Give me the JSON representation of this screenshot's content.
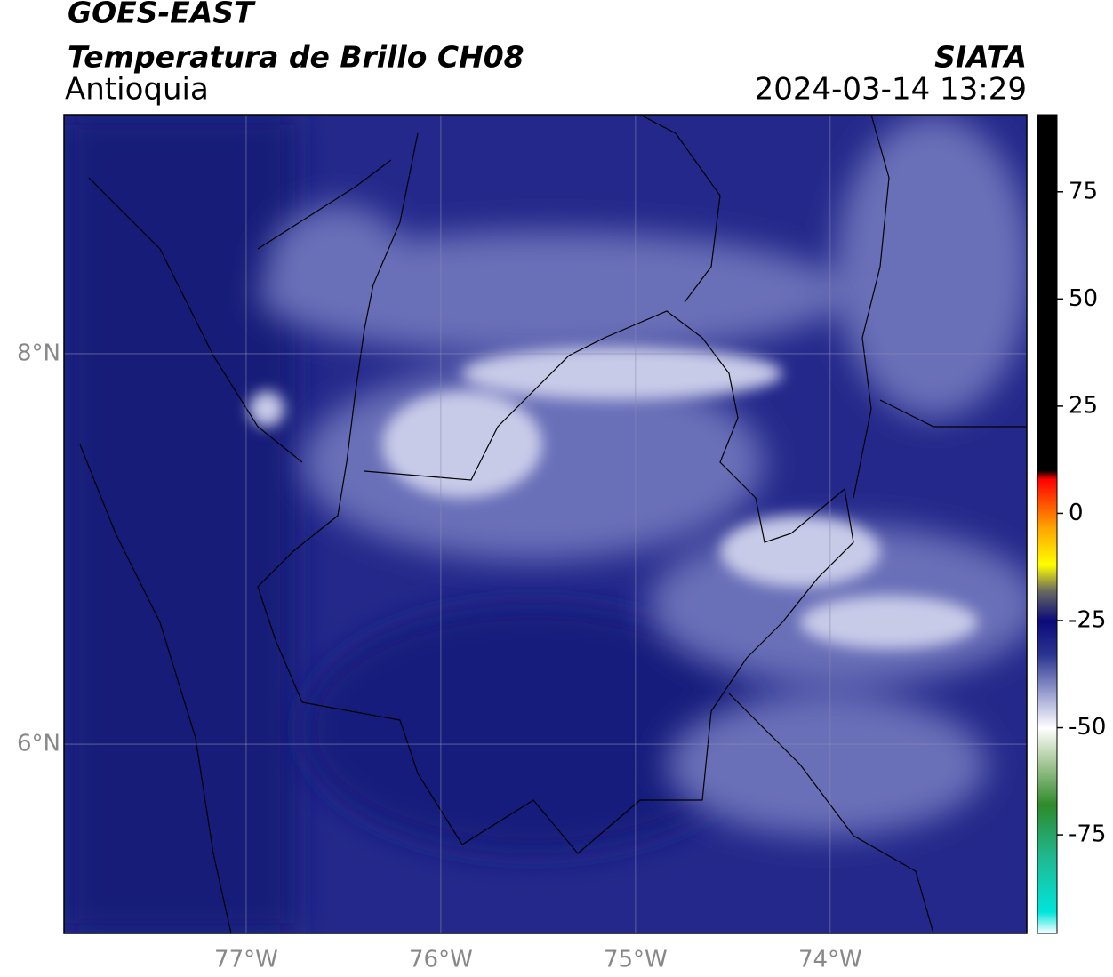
{
  "chart_data": {
    "type": "map",
    "title": "GOES-EAST",
    "subtitle": "Temperatura de Brillo CH08",
    "region": "Antioquia",
    "source": "SIATA",
    "timestamp": "2024-03-14 13:29",
    "xlim": [
      -77.936,
      -72.99
    ],
    "ylim": [
      5.03,
      9.225
    ],
    "xticks": [
      {
        "value": -77,
        "label": "77°W"
      },
      {
        "value": -76,
        "label": "76°W"
      },
      {
        "value": -75,
        "label": "75°W"
      },
      {
        "value": -74,
        "label": "74°W"
      }
    ],
    "yticks": [
      {
        "value": 6,
        "label": "6°N"
      },
      {
        "value": 8,
        "label": "8°N"
      }
    ],
    "grid": true,
    "colorbar": {
      "lim": [
        -98,
        93
      ],
      "ticks": [
        75,
        50,
        25,
        0,
        -25,
        -50,
        -75
      ],
      "stops": [
        {
          "value": -98,
          "color": "#ffffff"
        },
        {
          "value": -93,
          "color": "#00e5dc"
        },
        {
          "value": -80,
          "color": "#20b890"
        },
        {
          "value": -68,
          "color": "#2e8a2a"
        },
        {
          "value": -58,
          "color": "#a8c89a"
        },
        {
          "value": -50,
          "color": "#ffffff"
        },
        {
          "value": -42,
          "color": "#9aa0d0"
        },
        {
          "value": -33,
          "color": "#2a3590"
        },
        {
          "value": -25,
          "color": "#0a0a7a"
        },
        {
          "value": -18,
          "color": "#6a6a60"
        },
        {
          "value": -12,
          "color": "#ffff00"
        },
        {
          "value": -3,
          "color": "#ffa000"
        },
        {
          "value": 8,
          "color": "#ff0000"
        },
        {
          "value": 10,
          "color": "#000000"
        },
        {
          "value": 93,
          "color": "#000000"
        }
      ]
    }
  }
}
